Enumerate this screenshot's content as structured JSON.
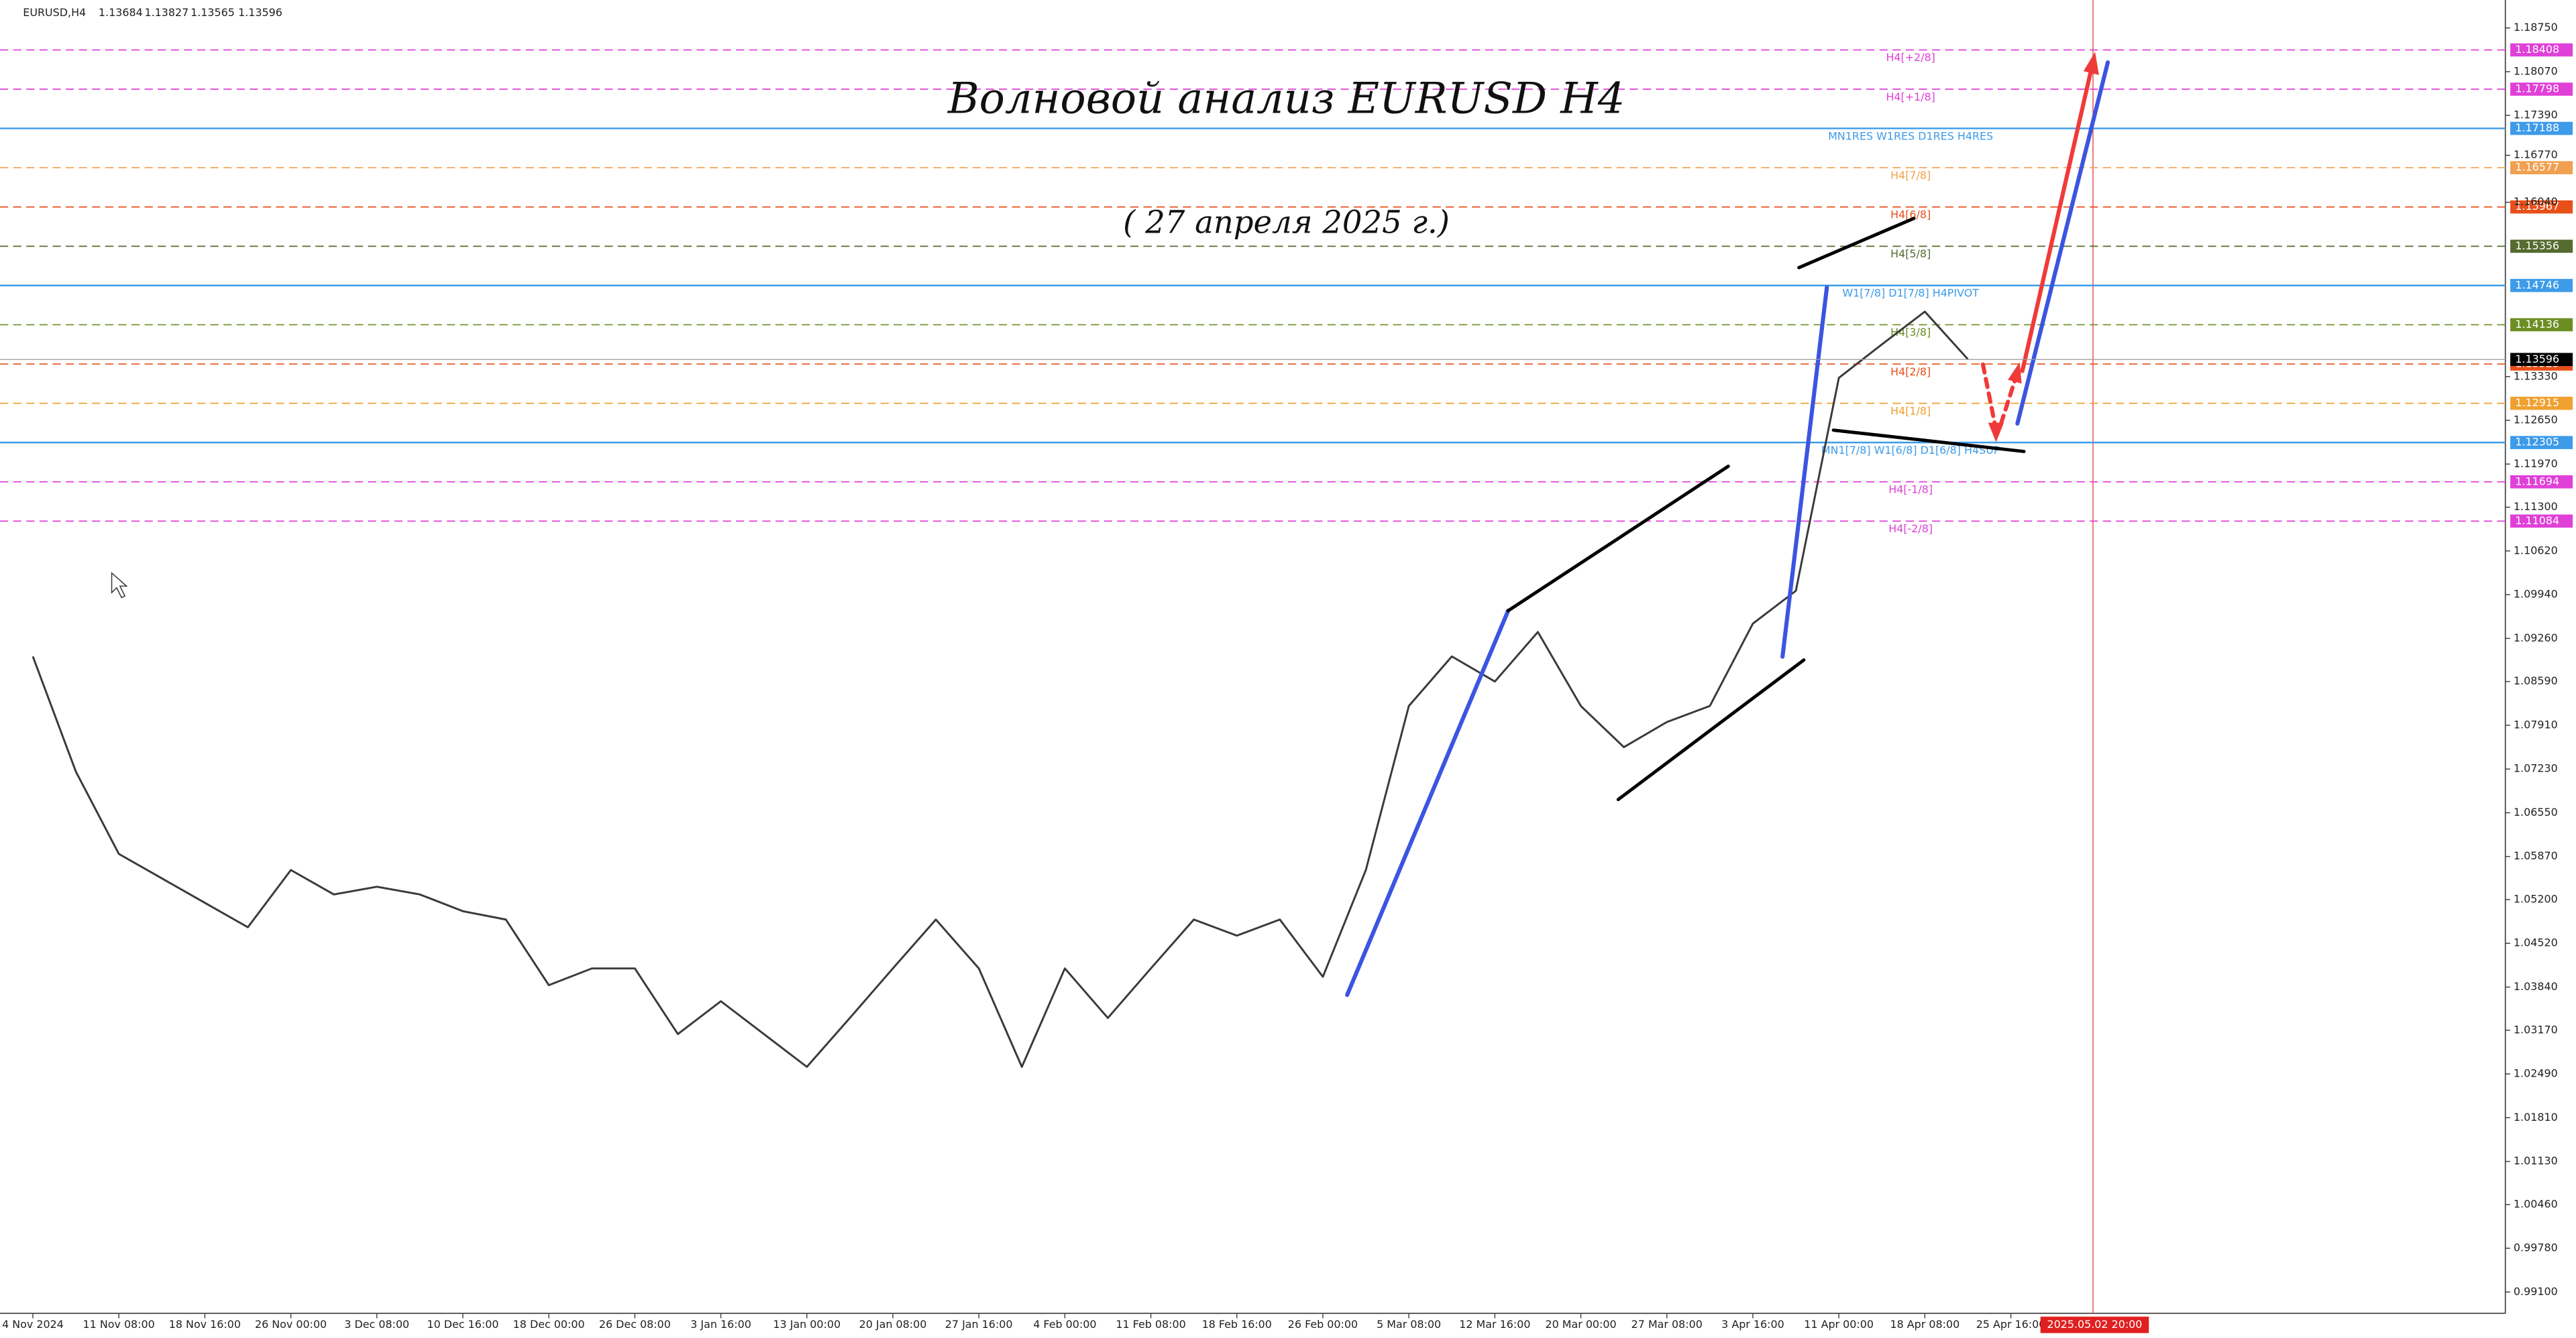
{
  "header": {
    "symbol": "EURUSD,H4",
    "ohlc": [
      1.13684,
      1.13827,
      1.13565,
      1.13596
    ]
  },
  "chart_data": {
    "type": "line",
    "title": "Волновой анализ EURUSD H4",
    "subtitle": "( 27 апреля 2025  г.)",
    "color": "#3a3a3a",
    "categories": [
      "4 Nov 2024",
      null,
      "11 Nov 08:00",
      null,
      "18 Nov 16:00",
      null,
      "26 Nov 00:00",
      null,
      "3 Dec 08:00",
      null,
      "10 Dec 16:00",
      null,
      "18 Dec 00:00",
      null,
      "26 Dec 08:00",
      null,
      "3 Jan 16:00",
      null,
      "13 Jan 00:00",
      null,
      "20 Jan 08:00",
      null,
      "27 Jan 16:00",
      null,
      "4 Feb 00:00",
      null,
      "11 Feb 08:00",
      null,
      "18 Feb 16:00",
      null,
      "26 Feb 00:00",
      null,
      "5 Mar 08:00",
      null,
      "12 Mar 16:00",
      null,
      "20 Mar 00:00",
      null,
      "27 Mar 08:00",
      null,
      "3 Apr 16:00",
      null,
      "11 Apr 00:00",
      null,
      "18 Apr 08:00",
      null,
      "25 Apr 16:00"
    ],
    "values": [
      1.0898,
      1.0719,
      1.0591,
      1.0553,
      1.0515,
      1.0477,
      1.0566,
      1.0528,
      1.054,
      1.0528,
      1.0502,
      1.0489,
      1.0387,
      1.0413,
      1.0413,
      1.0311,
      1.0362,
      1.0311,
      1.026,
      1.0336,
      1.0413,
      1.0489,
      1.0413,
      1.026,
      1.0413,
      1.0336,
      1.0413,
      1.0489,
      1.0464,
      1.0489,
      1.04,
      1.0566,
      1.0821,
      1.0898,
      1.0859,
      1.0936,
      1.0821,
      1.0757,
      1.0796,
      1.0821,
      1.0949,
      1.1,
      1.1331,
      1.1383,
      1.1434,
      1.136,
      null
    ],
    "ylim": [
      0.98768,
      1.19184
    ],
    "yticks": [
      {
        "value": 1.1875,
        "label": "1.18750"
      },
      {
        "value": 1.1807,
        "label": "1.18070"
      },
      {
        "value": 1.1739,
        "label": "1.17390"
      },
      {
        "value": 1.1677,
        "label": "1.16770"
      },
      {
        "value": 1.1604,
        "label": "1.16040"
      },
      {
        "value": 1.1333,
        "label": "1.13330"
      },
      {
        "value": 1.1265,
        "label": "1.12650"
      },
      {
        "value": 1.1197,
        "label": "1.11970"
      },
      {
        "value": 1.113,
        "label": "1.11300"
      },
      {
        "value": 1.1062,
        "label": "1.10620"
      },
      {
        "value": 1.0994,
        "label": "1.09940"
      },
      {
        "value": 1.0926,
        "label": "1.09260"
      },
      {
        "value": 1.0859,
        "label": "1.08590"
      },
      {
        "value": 1.0791,
        "label": "1.07910"
      },
      {
        "value": 1.0723,
        "label": "1.07230"
      },
      {
        "value": 1.0655,
        "label": "1.06550"
      },
      {
        "value": 1.0587,
        "label": "1.05870"
      },
      {
        "value": 1.052,
        "label": "1.05200"
      },
      {
        "value": 1.0452,
        "label": "1.04520"
      },
      {
        "value": 1.0384,
        "label": "1.03840"
      },
      {
        "value": 1.0317,
        "label": "1.03170"
      },
      {
        "value": 1.0249,
        "label": "1.02490"
      },
      {
        "value": 1.0181,
        "label": "1.01810"
      },
      {
        "value": 1.0113,
        "label": "1.01130"
      },
      {
        "value": 1.0046,
        "label": "1.00460"
      },
      {
        "value": 0.9978,
        "label": "0.99780"
      },
      {
        "value": 0.991,
        "label": "0.99100"
      }
    ],
    "levels": [
      {
        "value": 1.18408,
        "label": "H4[+2/8]",
        "color": "#e040d8",
        "dashed": true
      },
      {
        "value": 1.17798,
        "label": "H4[+1/8]",
        "color": "#e040d8",
        "dashed": true
      },
      {
        "value": 1.17188,
        "label": "MN1RES W1RES D1RES H4RES",
        "color": "#3d9be9",
        "dashed": false
      },
      {
        "value": 1.16577,
        "label": "H4[7/8]",
        "color": "#f0a050",
        "dashed": true
      },
      {
        "value": 1.15967,
        "label": "H4[6/8]",
        "color": "#e8501a",
        "dashed": true
      },
      {
        "value": 1.15356,
        "label": "H4[5/8]",
        "color": "#556b2f",
        "dashed": true
      },
      {
        "value": 1.14746,
        "label": "W1[7/8] D1[7/8] H4PIVOT",
        "color": "#3d9be9",
        "dashed": false
      },
      {
        "value": 1.14136,
        "label": "H4[3/8]",
        "color": "#6b8e23",
        "dashed": true
      },
      {
        "value": 1.13525,
        "label": "H4[2/8]",
        "color": "#e8501a",
        "dashed": true
      },
      {
        "value": 1.12915,
        "label": "H4[1/8]",
        "color": "#f0a030",
        "dashed": true
      },
      {
        "value": 1.12305,
        "label": "MN1[7/8] W1[6/8] D1[6/8] H4SUP",
        "color": "#3d9be9",
        "dashed": false
      },
      {
        "value": 1.11694,
        "label": "H4[-1/8]",
        "color": "#e040d8",
        "dashed": true
      },
      {
        "value": 1.11084,
        "label": "H4[-2/8]",
        "color": "#e040d8",
        "dashed": true
      }
    ],
    "current_price": 1.13596,
    "cursor_label": "2025.05.02 20:00"
  }
}
